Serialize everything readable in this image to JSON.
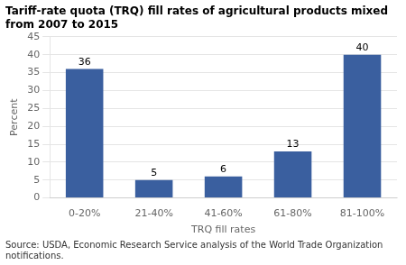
{
  "chart_data": {
    "type": "bar",
    "title": "Tariff-rate quota (TRQ) fill rates of agricultural products mixed from 2007 to 2015",
    "categories": [
      "0-20%",
      "21-40%",
      "41-60%",
      "61-80%",
      "81-100%"
    ],
    "values": [
      36,
      5,
      6,
      13,
      40
    ],
    "color": "#3a5f9f",
    "xlabel": "TRQ fill rates",
    "ylabel": "Percent",
    "ylim": [
      0,
      45
    ],
    "yticks": [
      0,
      5,
      10,
      15,
      20,
      25,
      30,
      35,
      40,
      45
    ],
    "grid": true,
    "data_labels": true,
    "source": "Source: USDA, Economic Research Service analysis of the World Trade Organization notifications."
  }
}
